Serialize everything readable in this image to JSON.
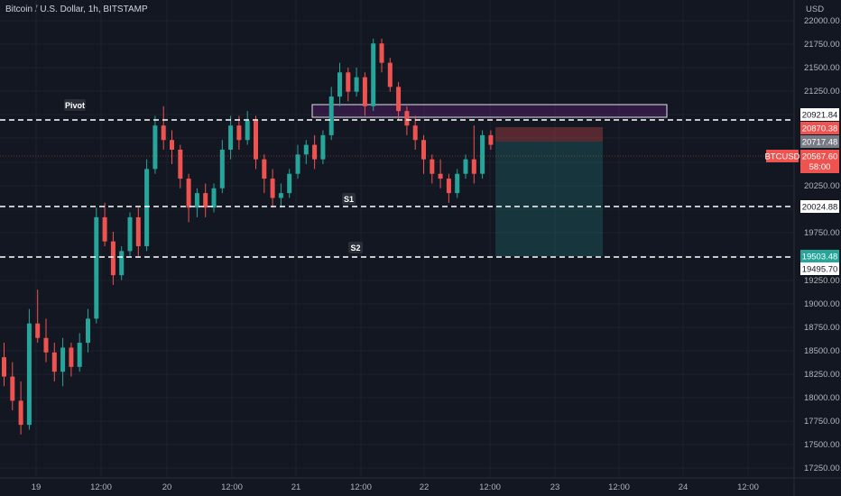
{
  "header": {
    "title": "Bitcoin / U.S. Dollar, 1h, BITSTAMP"
  },
  "price_axis": {
    "currency": "USD",
    "ticks": [
      "22000.00",
      "21750.00",
      "21500.00",
      "21250.00",
      "20250.00",
      "19750.00",
      "19250.00",
      "19000.00",
      "18750.00",
      "18500.00",
      "18250.00",
      "18000.00",
      "17750.00",
      "17500.00",
      "17250.00"
    ]
  },
  "time_axis": {
    "ticks": [
      "19",
      "12:00",
      "20",
      "12:00",
      "21",
      "12:00",
      "22",
      "12:00",
      "23",
      "12:00",
      "24",
      "12:00"
    ]
  },
  "levels": {
    "resistance": "20921.84",
    "pivot": "Pivot",
    "s1": "S1",
    "s1_price": "20024.88",
    "s2": "S2",
    "s2_price": "19503.48"
  },
  "position": {
    "stop_price": "20870.38",
    "entry_price": "20717.48",
    "target_price": "19495.70"
  },
  "current": {
    "symbol": "BTCUSD",
    "price": "20567.60",
    "countdown": "58:00"
  },
  "colors": {
    "background": "#131722",
    "up": "#26a69a",
    "down": "#ef5350",
    "grid": "#1e222d",
    "text": "#b2b5be"
  },
  "chart_data": {
    "type": "candlestick",
    "symbol": "BTCUSD",
    "interval": "1h",
    "ylim": [
      17150,
      22100
    ],
    "ohlc": [
      [
        18400,
        18550,
        18100,
        18200
      ],
      [
        18200,
        18350,
        17850,
        17950
      ],
      [
        17950,
        18150,
        17600,
        17700
      ],
      [
        17700,
        18900,
        17650,
        18750
      ],
      [
        18750,
        19100,
        18550,
        18600
      ],
      [
        18600,
        18800,
        18350,
        18450
      ],
      [
        18450,
        18550,
        18150,
        18250
      ],
      [
        18250,
        18600,
        18100,
        18500
      ],
      [
        18500,
        18550,
        18200,
        18300
      ],
      [
        18300,
        18650,
        18250,
        18550
      ],
      [
        18550,
        18900,
        18450,
        18800
      ],
      [
        18800,
        19950,
        18750,
        19850
      ],
      [
        19850,
        20000,
        19550,
        19600
      ],
      [
        19600,
        19700,
        19150,
        19250
      ],
      [
        19250,
        19550,
        19200,
        19500
      ],
      [
        19500,
        19900,
        19450,
        19850
      ],
      [
        19850,
        19950,
        19450,
        19550
      ],
      [
        19550,
        20450,
        19500,
        20350
      ],
      [
        20350,
        20900,
        20300,
        20800
      ],
      [
        20800,
        21000,
        20550,
        20650
      ],
      [
        20650,
        20750,
        20400,
        20550
      ],
      [
        20550,
        20600,
        20150,
        20250
      ],
      [
        20250,
        20300,
        19800,
        19950
      ],
      [
        19950,
        20150,
        19850,
        20100
      ],
      [
        20100,
        20200,
        19850,
        19950
      ],
      [
        19950,
        20200,
        19900,
        20150
      ],
      [
        20150,
        20650,
        20100,
        20550
      ],
      [
        20550,
        20900,
        20450,
        20800
      ],
      [
        20800,
        20900,
        20550,
        20650
      ],
      [
        20650,
        20950,
        20600,
        20850
      ],
      [
        20850,
        20900,
        20350,
        20450
      ],
      [
        20450,
        20500,
        20100,
        20250
      ],
      [
        20250,
        20350,
        19950,
        20050
      ],
      [
        20050,
        20200,
        19950,
        20100
      ],
      [
        20100,
        20350,
        20050,
        20300
      ],
      [
        20300,
        20600,
        20250,
        20500
      ],
      [
        20500,
        20650,
        20400,
        20600
      ],
      [
        20600,
        20700,
        20350,
        20450
      ],
      [
        20450,
        20750,
        20400,
        20700
      ],
      [
        20700,
        21200,
        20650,
        21100
      ],
      [
        21100,
        21450,
        21000,
        21350
      ],
      [
        21350,
        21400,
        21050,
        21150
      ],
      [
        21150,
        21400,
        21100,
        21300
      ],
      [
        21300,
        21350,
        20900,
        21000
      ],
      [
        21000,
        21700,
        20950,
        21650
      ],
      [
        21650,
        21700,
        21350,
        21450
      ],
      [
        21450,
        21500,
        21150,
        21200
      ],
      [
        21200,
        21250,
        20850,
        20950
      ],
      [
        20950,
        21000,
        20700,
        20800
      ],
      [
        20800,
        20900,
        20550,
        20650
      ],
      [
        20650,
        20700,
        20300,
        20450
      ],
      [
        20450,
        20500,
        20200,
        20300
      ],
      [
        20300,
        20450,
        20150,
        20250
      ],
      [
        20250,
        20300,
        20000,
        20100
      ],
      [
        20100,
        20350,
        20050,
        20300
      ],
      [
        20300,
        20500,
        20250,
        20450
      ],
      [
        20450,
        20800,
        20200,
        20300
      ],
      [
        20300,
        20750,
        20250,
        20700
      ],
      [
        20700,
        20750,
        20550,
        20600
      ]
    ]
  }
}
